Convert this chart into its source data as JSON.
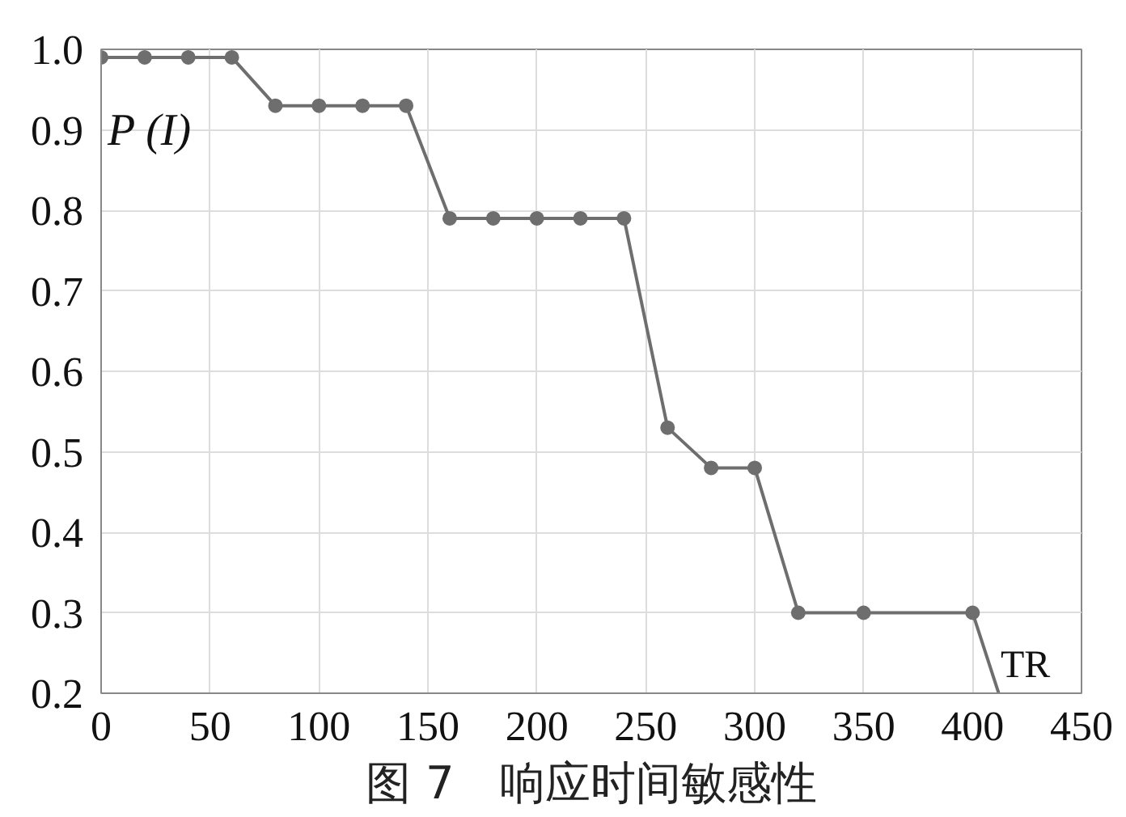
{
  "chart_data": {
    "type": "line",
    "title": "图 7　响应时间敏感性",
    "xlabel": "TR",
    "ylabel": "P (I)",
    "xlim": [
      0,
      450
    ],
    "ylim": [
      0.2,
      1.0
    ],
    "xticks": [
      0,
      50,
      100,
      150,
      200,
      250,
      300,
      350,
      400,
      450
    ],
    "yticks": [
      {
        "value": 0.2,
        "label": "0.2"
      },
      {
        "value": 0.3,
        "label": "0.3"
      },
      {
        "value": 0.4,
        "label": "0.4"
      },
      {
        "value": 0.5,
        "label": "0.5"
      },
      {
        "value": 0.6,
        "label": "0.6"
      },
      {
        "value": 0.7,
        "label": "0.7"
      },
      {
        "value": 0.8,
        "label": "0.8"
      },
      {
        "value": 0.9,
        "label": "0.9"
      },
      {
        "value": 1.0,
        "label": "1.0"
      }
    ],
    "grid": true,
    "marker": "circle",
    "line_style": "solid",
    "series": [
      {
        "color": "#6e6e6e",
        "x": [
          0,
          20,
          40,
          60,
          80,
          100,
          120,
          140,
          160,
          180,
          200,
          220,
          240,
          260,
          280,
          300,
          320,
          350,
          400
        ],
        "values": [
          0.99,
          0.99,
          0.99,
          0.99,
          0.93,
          0.93,
          0.93,
          0.93,
          0.79,
          0.79,
          0.79,
          0.79,
          0.79,
          0.53,
          0.48,
          0.48,
          0.3,
          0.3,
          0.3
        ]
      },
      {
        "color": "#6e6e6e",
        "marker": "none",
        "x": [
          400,
          412
        ],
        "values": [
          0.3,
          0.2
        ]
      }
    ]
  }
}
